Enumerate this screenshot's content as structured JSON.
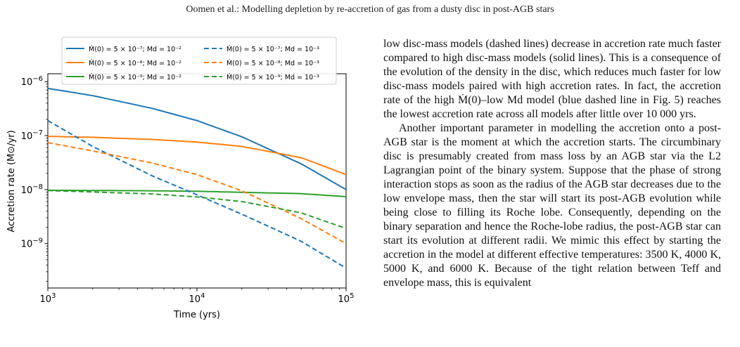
{
  "header": {
    "running_title": "Oomen et al.: Modelling depletion by re-accretion of gas from a dusty disc in post-AGB stars"
  },
  "chart_data": {
    "type": "line",
    "xscale": "log",
    "yscale": "log",
    "xlim": [
      1000,
      100000
    ],
    "ylim": [
      1.5e-10,
      1.4e-06
    ],
    "xlabel": "Time (yrs)",
    "ylabel": "Accretion rate (M⊙/yr)",
    "x_ticks": [
      {
        "value": 1000,
        "base": "10",
        "exp": "3"
      },
      {
        "value": 10000,
        "base": "10",
        "exp": "4"
      },
      {
        "value": 100000,
        "base": "10",
        "exp": "5"
      }
    ],
    "y_ticks": [
      {
        "value": 1e-09,
        "base": "10",
        "exp": "−9"
      },
      {
        "value": 1e-08,
        "base": "10",
        "exp": "−8"
      },
      {
        "value": 1e-07,
        "base": "10",
        "exp": "−7"
      },
      {
        "value": 1e-06,
        "base": "10",
        "exp": "−6"
      }
    ],
    "legend_position": "top",
    "series": [
      {
        "name": "Ṁ(0) = 5 × 10⁻⁷; Md = 10⁻²",
        "color": "#1f77b4",
        "dash": "solid",
        "x": [
          1000,
          2000,
          5000,
          10000,
          20000,
          50000,
          100000
        ],
        "y": [
          7.5e-07,
          5.5e-07,
          3.2e-07,
          1.9e-07,
          9.5e-08,
          3e-08,
          1e-08
        ]
      },
      {
        "name": "Ṁ(0) = 5 × 10⁻⁸; Md = 10⁻²",
        "color": "#ff7f0e",
        "dash": "solid",
        "x": [
          1000,
          2000,
          5000,
          10000,
          20000,
          50000,
          100000
        ],
        "y": [
          9.7e-08,
          9.3e-08,
          8.5e-08,
          7.6e-08,
          6.3e-08,
          3.9e-08,
          1.9e-08
        ]
      },
      {
        "name": "Ṁ(0) = 5 × 10⁻⁹; Md = 10⁻²",
        "color": "#2ca02c",
        "dash": "solid",
        "x": [
          1000,
          5000,
          10000,
          50000,
          100000
        ],
        "y": [
          9.7e-09,
          9.5e-09,
          9.3e-09,
          8.4e-09,
          7.4e-09
        ]
      },
      {
        "name": "Ṁ(0) = 5 × 10⁻⁷; Md = 10⁻³",
        "color": "#1f77b4",
        "dash": "dashed",
        "x": [
          1000,
          2000,
          5000,
          10000,
          20000,
          50000,
          100000
        ],
        "y": [
          1.9e-07,
          6.3e-08,
          1.8e-08,
          8e-09,
          3.5e-09,
          1.1e-09,
          3.5e-10
        ]
      },
      {
        "name": "Ṁ(0) = 5 × 10⁻⁸; Md = 10⁻³",
        "color": "#ff7f0e",
        "dash": "dashed",
        "x": [
          1000,
          2000,
          5000,
          10000,
          20000,
          50000,
          100000
        ],
        "y": [
          7.4e-08,
          5.2e-08,
          3.1e-08,
          1.9e-08,
          9.5e-09,
          2.9e-09,
          1e-09
        ]
      },
      {
        "name": "Ṁ(0) = 5 × 10⁻⁹; Md = 10⁻³",
        "color": "#2ca02c",
        "dash": "dashed",
        "x": [
          1000,
          5000,
          10000,
          20000,
          50000,
          100000
        ],
        "y": [
          9.6e-09,
          8.3e-09,
          7.3e-09,
          6e-09,
          3.7e-09,
          1.9e-09
        ]
      }
    ]
  },
  "text": {
    "paragraph_1": "low disc-mass models (dashed lines) decrease in accretion rate much faster compared to high disc-mass models (solid lines). This is a consequence of the evolution of the density in the disc, which reduces much faster for low disc-mass models paired with high accretion rates. In fact, the accretion rate of the high Ṁ(0)–low Md model (blue dashed line in Fig. 5) reaches the lowest accretion rate across all models after little over 10 000 yrs.",
    "paragraph_2": "Another important parameter in modelling the accretion onto a post-AGB star is the moment at which the accretion starts. The circumbinary disc is presumably created from mass loss by an AGB star via the L2 Lagrangian point of the binary system. Suppose that the phase of strong interaction stops as soon as the radius of the AGB star decreases due to the low envelope mass, then the star will start its post-AGB evolution while being close to filling its Roche lobe. Consequently, depending on the binary separation and hence the Roche-lobe radius, the post-AGB star can start its evolution at different radii. We mimic this effect by starting the accretion in the model at different effective temperatures: 3500 K, 4000 K, 5000 K, and 6000 K. Because of the tight relation between Teff and envelope mass, this is equivalent"
  }
}
